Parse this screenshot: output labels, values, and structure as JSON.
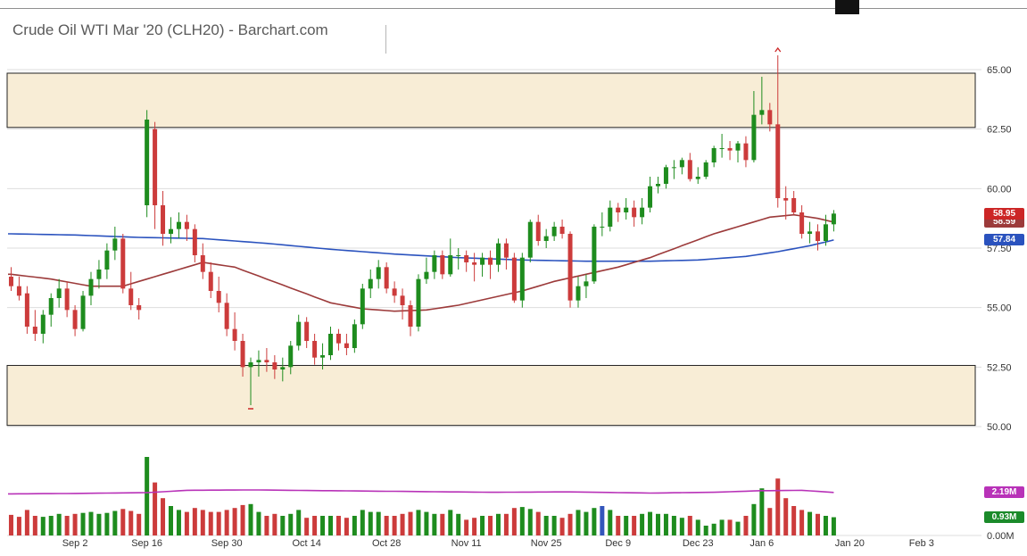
{
  "title": "Crude Oil WTI Mar '20 (CLH20) - Barchart.com",
  "colors": {
    "up": "#1e8c1e",
    "down": "#cc3b3b",
    "ma_red": "#9c3a3a",
    "ma_blue": "#2a52be",
    "volume_avg": "#b832b8",
    "band_fill": "#f8edd6",
    "band_border": "#222222",
    "grid": "#dddddd",
    "axis_text": "#333333",
    "marker": "#cc2626"
  },
  "chart_data": {
    "type": "candlestick",
    "panes": [
      "price",
      "volume"
    ],
    "title": "Crude Oil WTI Mar '20 (CLH20) - Barchart.com",
    "price_axis": {
      "ticks": [
        {
          "label": "65.00",
          "value": 65.0
        },
        {
          "label": "62.50",
          "value": 62.5
        },
        {
          "label": "60.00",
          "value": 60.0
        },
        {
          "label": "57.50",
          "value": 57.5
        },
        {
          "label": "55.00",
          "value": 55.0
        },
        {
          "label": "52.50",
          "value": 52.5
        },
        {
          "label": "50.00",
          "value": 50.0
        }
      ],
      "ylim": [
        49.3,
        67.4
      ]
    },
    "volume_axis": {
      "ticks": [
        {
          "label": "0.00M",
          "value": 0
        }
      ],
      "ylim": [
        0,
        5
      ]
    },
    "x_axis": {
      "labels": [
        {
          "label": "Sep 2",
          "i": 8
        },
        {
          "label": "Sep 16",
          "i": 17
        },
        {
          "label": "Sep 30",
          "i": 27
        },
        {
          "label": "Oct 14",
          "i": 37
        },
        {
          "label": "Oct 28",
          "i": 47
        },
        {
          "label": "Nov 11",
          "i": 57
        },
        {
          "label": "Nov 25",
          "i": 67
        },
        {
          "label": "Dec 9",
          "i": 76
        },
        {
          "label": "Dec 23",
          "i": 86
        },
        {
          "label": "Jan 6",
          "i": 94
        },
        {
          "label": "Jan 20",
          "i": 105
        },
        {
          "label": "Feb 3",
          "i": 114
        }
      ]
    },
    "bands": [
      {
        "name": "upper-resistance-band",
        "top": 64.85,
        "bottom": 62.57
      },
      {
        "name": "lower-support-band",
        "top": 52.57,
        "bottom": 50.05
      }
    ],
    "candle_format": [
      "date",
      "open",
      "high",
      "low",
      "close",
      "volume_m"
    ],
    "candles": [
      [
        "Aug 21",
        56.3,
        56.7,
        55.7,
        55.9,
        1.05
      ],
      [
        "Aug 22",
        55.9,
        56.3,
        55.3,
        55.5,
        0.95
      ],
      [
        "Aug 23",
        55.6,
        55.9,
        53.9,
        54.2,
        1.3
      ],
      [
        "Aug 26",
        54.2,
        54.9,
        53.6,
        53.9,
        1.0
      ],
      [
        "Aug 27",
        53.9,
        54.9,
        53.5,
        54.7,
        0.95
      ],
      [
        "Aug 28",
        54.7,
        55.6,
        54.2,
        55.4,
        1.0
      ],
      [
        "Aug 29",
        55.4,
        56.2,
        55.0,
        55.8,
        1.1
      ],
      [
        "Aug 30",
        55.8,
        56.1,
        54.6,
        54.9,
        1.0
      ],
      [
        "Sep 3",
        54.9,
        55.1,
        53.8,
        54.1,
        1.1
      ],
      [
        "Sep 4",
        54.1,
        55.7,
        54.0,
        55.5,
        1.15
      ],
      [
        "Sep 5",
        55.5,
        56.5,
        55.1,
        56.2,
        1.2
      ],
      [
        "Sep 6",
        56.2,
        57.0,
        55.8,
        56.6,
        1.1
      ],
      [
        "Sep 9",
        56.6,
        57.7,
        56.2,
        57.4,
        1.15
      ],
      [
        "Sep 10",
        57.4,
        58.4,
        57.0,
        57.9,
        1.25
      ],
      [
        "Sep 11",
        57.9,
        58.1,
        55.6,
        55.8,
        1.35
      ],
      [
        "Sep 12",
        55.8,
        56.5,
        54.9,
        55.1,
        1.25
      ],
      [
        "Sep 13",
        55.1,
        55.4,
        54.5,
        54.9,
        1.1
      ],
      [
        "Sep 16",
        59.3,
        63.3,
        58.8,
        62.9,
        4.0
      ],
      [
        "Sep 17",
        62.5,
        62.8,
        58.3,
        59.3,
        2.7
      ],
      [
        "Sep 18",
        59.3,
        59.9,
        57.6,
        58.1,
        1.9
      ],
      [
        "Sep 19",
        58.1,
        58.8,
        57.7,
        58.3,
        1.5
      ],
      [
        "Sep 20",
        58.3,
        59.0,
        57.9,
        58.6,
        1.3
      ],
      [
        "Sep 23",
        58.6,
        58.9,
        57.8,
        58.3,
        1.2
      ],
      [
        "Sep 24",
        58.3,
        58.5,
        56.9,
        57.2,
        1.4
      ],
      [
        "Sep 25",
        57.2,
        57.7,
        56.2,
        56.5,
        1.3
      ],
      [
        "Sep 26",
        56.5,
        56.9,
        55.4,
        55.7,
        1.2
      ],
      [
        "Sep 27",
        55.7,
        56.3,
        54.8,
        55.2,
        1.2
      ],
      [
        "Sep 30",
        55.2,
        55.6,
        53.8,
        54.1,
        1.3
      ],
      [
        "Oct 1",
        54.1,
        54.8,
        53.2,
        53.6,
        1.4
      ],
      [
        "Oct 2",
        53.6,
        53.9,
        52.1,
        52.5,
        1.55
      ],
      [
        "Oct 3",
        52.5,
        52.9,
        50.9,
        52.7,
        1.6
      ],
      [
        "Oct 4",
        52.7,
        53.2,
        52.1,
        52.8,
        1.2
      ],
      [
        "Oct 7",
        52.8,
        53.3,
        52.3,
        52.7,
        1.0
      ],
      [
        "Oct 8",
        52.7,
        53.0,
        52.0,
        52.4,
        1.1
      ],
      [
        "Oct 9",
        52.4,
        52.9,
        51.9,
        52.5,
        1.0
      ],
      [
        "Oct 10",
        52.5,
        53.6,
        52.2,
        53.4,
        1.1
      ],
      [
        "Oct 11",
        53.4,
        54.7,
        53.2,
        54.4,
        1.3
      ],
      [
        "Oct 14",
        54.4,
        54.6,
        53.3,
        53.6,
        0.9
      ],
      [
        "Oct 15",
        53.6,
        53.9,
        52.6,
        52.9,
        1.0
      ],
      [
        "Oct 16",
        52.9,
        53.5,
        52.4,
        53.0,
        1.0
      ],
      [
        "Oct 17",
        53.0,
        54.2,
        52.8,
        53.9,
        1.0
      ],
      [
        "Oct 18",
        53.9,
        54.1,
        53.2,
        53.5,
        1.0
      ],
      [
        "Oct 21",
        53.5,
        53.9,
        53.0,
        53.3,
        0.9
      ],
      [
        "Oct 22",
        53.3,
        54.5,
        53.1,
        54.3,
        1.0
      ],
      [
        "Oct 23",
        54.3,
        56.0,
        54.1,
        55.8,
        1.3
      ],
      [
        "Oct 24",
        55.8,
        56.6,
        55.4,
        56.2,
        1.2
      ],
      [
        "Oct 25",
        56.2,
        57.0,
        55.8,
        56.7,
        1.2
      ],
      [
        "Oct 28",
        56.7,
        56.9,
        55.6,
        55.8,
        1.0
      ],
      [
        "Oct 29",
        55.8,
        56.1,
        55.2,
        55.5,
        1.0
      ],
      [
        "Oct 30",
        55.5,
        55.8,
        54.5,
        55.1,
        1.1
      ],
      [
        "Oct 31",
        55.1,
        55.3,
        53.8,
        54.2,
        1.2
      ],
      [
        "Nov 1",
        54.2,
        56.4,
        54.0,
        56.2,
        1.3
      ],
      [
        "Nov 4",
        56.2,
        57.1,
        56.0,
        56.5,
        1.2
      ],
      [
        "Nov 5",
        56.5,
        57.4,
        56.2,
        57.2,
        1.1
      ],
      [
        "Nov 6",
        57.2,
        57.4,
        56.2,
        56.4,
        1.1
      ],
      [
        "Nov 7",
        56.4,
        57.9,
        56.3,
        57.2,
        1.3
      ],
      [
        "Nov 8",
        57.2,
        57.5,
        56.6,
        57.2,
        1.1
      ],
      [
        "Nov 11",
        57.2,
        57.4,
        56.5,
        56.9,
        0.8
      ],
      [
        "Nov 12",
        56.9,
        57.3,
        56.1,
        56.8,
        0.9
      ],
      [
        "Nov 13",
        56.8,
        57.3,
        56.3,
        57.1,
        1.0
      ],
      [
        "Nov 14",
        57.1,
        57.4,
        56.2,
        56.8,
        1.0
      ],
      [
        "Nov 15",
        56.8,
        57.9,
        56.5,
        57.7,
        1.1
      ],
      [
        "Nov 18",
        57.7,
        57.9,
        56.6,
        57.1,
        1.1
      ],
      [
        "Nov 19",
        57.1,
        57.3,
        55.2,
        55.3,
        1.4
      ],
      [
        "Nov 20",
        55.3,
        57.3,
        55.0,
        57.1,
        1.45
      ],
      [
        "Nov 21",
        57.1,
        58.7,
        56.9,
        58.6,
        1.35
      ],
      [
        "Nov 22",
        58.6,
        58.9,
        57.6,
        57.8,
        1.2
      ],
      [
        "Nov 25",
        57.8,
        58.3,
        57.5,
        58.0,
        1.0
      ],
      [
        "Nov 26",
        58.0,
        58.6,
        57.8,
        58.4,
        1.0
      ],
      [
        "Nov 27",
        58.4,
        58.7,
        57.9,
        58.1,
        0.9
      ],
      [
        "Nov 29",
        58.1,
        58.2,
        55.0,
        55.3,
        1.1
      ],
      [
        "Dec 2",
        55.3,
        56.3,
        55.0,
        55.9,
        1.3
      ],
      [
        "Dec 3",
        55.9,
        56.4,
        55.4,
        56.1,
        1.2
      ],
      [
        "Dec 4",
        56.1,
        58.5,
        56.0,
        58.4,
        1.4
      ],
      [
        "Dec 5",
        58.4,
        59.0,
        58.0,
        58.4,
        1.5
      ],
      [
        "Dec 6",
        58.4,
        59.5,
        58.2,
        59.2,
        1.3
      ],
      [
        "Dec 9",
        59.2,
        59.4,
        58.6,
        59.0,
        1.0
      ],
      [
        "Dec 10",
        59.0,
        59.6,
        58.7,
        59.2,
        1.0
      ],
      [
        "Dec 11",
        59.2,
        59.5,
        58.4,
        58.8,
        1.0
      ],
      [
        "Dec 12",
        58.8,
        59.6,
        58.5,
        59.2,
        1.1
      ],
      [
        "Dec 13",
        59.2,
        60.5,
        59.0,
        60.1,
        1.2
      ],
      [
        "Dec 16",
        60.1,
        60.5,
        59.8,
        60.2,
        1.1
      ],
      [
        "Dec 17",
        60.2,
        61.0,
        60.0,
        60.9,
        1.1
      ],
      [
        "Dec 18",
        60.9,
        61.2,
        60.4,
        60.9,
        1.0
      ],
      [
        "Dec 19",
        60.9,
        61.3,
        60.6,
        61.2,
        0.9
      ],
      [
        "Dec 20",
        61.2,
        61.5,
        60.3,
        60.4,
        1.0
      ],
      [
        "Dec 23",
        60.4,
        60.9,
        60.2,
        60.5,
        0.8
      ],
      [
        "Dec 24",
        60.5,
        61.2,
        60.4,
        61.1,
        0.5
      ],
      [
        "Dec 26",
        61.1,
        61.8,
        60.9,
        61.7,
        0.6
      ],
      [
        "Dec 27",
        61.7,
        62.3,
        61.3,
        61.7,
        0.8
      ],
      [
        "Dec 30",
        61.7,
        62.0,
        61.2,
        61.6,
        0.8
      ],
      [
        "Dec 31",
        61.6,
        62.0,
        61.1,
        61.9,
        0.7
      ],
      [
        "Jan 2",
        61.9,
        62.2,
        60.9,
        61.2,
        1.0
      ],
      [
        "Jan 3",
        61.2,
        64.1,
        61.1,
        63.1,
        1.6
      ],
      [
        "Jan 6",
        63.1,
        64.7,
        62.7,
        63.3,
        2.4
      ],
      [
        "Jan 7",
        63.3,
        63.6,
        62.4,
        62.7,
        1.4
      ],
      [
        "Jan 8",
        62.7,
        65.6,
        59.2,
        59.6,
        2.9
      ],
      [
        "Jan 9",
        59.6,
        60.1,
        58.7,
        59.5,
        1.9
      ],
      [
        "Jan 10",
        59.6,
        59.9,
        58.9,
        59.0,
        1.5
      ],
      [
        "Jan 13",
        59.0,
        59.3,
        57.9,
        58.1,
        1.3
      ],
      [
        "Jan 14",
        58.1,
        58.6,
        57.7,
        58.2,
        1.2
      ],
      [
        "Jan 15",
        58.2,
        58.5,
        57.4,
        57.8,
        1.1
      ],
      [
        "Jan 16",
        57.8,
        58.9,
        57.6,
        58.5,
        1.0
      ],
      [
        "Jan 17",
        58.5,
        59.1,
        58.2,
        58.95,
        0.93
      ]
    ],
    "volume_color_overrides": {
      "74": "#3355bb"
    },
    "ma_red": {
      "name": "moving-average-red",
      "last_value": 58.59,
      "points": [
        [
          0,
          56.4
        ],
        [
          5,
          56.2
        ],
        [
          10,
          55.9
        ],
        [
          14,
          55.9
        ],
        [
          18,
          56.3
        ],
        [
          24,
          56.9
        ],
        [
          28,
          56.7
        ],
        [
          32,
          56.2
        ],
        [
          36,
          55.7
        ],
        [
          40,
          55.2
        ],
        [
          44,
          54.95
        ],
        [
          48,
          54.85
        ],
        [
          52,
          54.9
        ],
        [
          56,
          55.1
        ],
        [
          60,
          55.4
        ],
        [
          64,
          55.7
        ],
        [
          68,
          56.1
        ],
        [
          72,
          56.4
        ],
        [
          76,
          56.7
        ],
        [
          80,
          57.1
        ],
        [
          84,
          57.6
        ],
        [
          88,
          58.1
        ],
        [
          92,
          58.5
        ],
        [
          95,
          58.8
        ],
        [
          98,
          58.9
        ],
        [
          101,
          58.75
        ],
        [
          103,
          58.59
        ]
      ]
    },
    "ma_blue": {
      "name": "moving-average-blue",
      "last_value": 57.84,
      "points": [
        [
          0,
          58.1
        ],
        [
          8,
          58.05
        ],
        [
          16,
          57.95
        ],
        [
          24,
          57.9
        ],
        [
          32,
          57.7
        ],
        [
          40,
          57.45
        ],
        [
          48,
          57.25
        ],
        [
          56,
          57.1
        ],
        [
          64,
          57.0
        ],
        [
          72,
          56.95
        ],
        [
          80,
          56.95
        ],
        [
          86,
          57.0
        ],
        [
          92,
          57.15
        ],
        [
          96,
          57.35
        ],
        [
          100,
          57.6
        ],
        [
          103,
          57.84
        ]
      ]
    },
    "volume_avg": {
      "name": "average-volume-line",
      "last_value": 2.19,
      "points": [
        [
          0,
          2.12
        ],
        [
          8,
          2.14
        ],
        [
          17,
          2.18
        ],
        [
          22,
          2.3
        ],
        [
          30,
          2.32
        ],
        [
          40,
          2.28
        ],
        [
          50,
          2.24
        ],
        [
          60,
          2.2
        ],
        [
          70,
          2.22
        ],
        [
          80,
          2.16
        ],
        [
          88,
          2.2
        ],
        [
          94,
          2.28
        ],
        [
          99,
          2.3
        ],
        [
          103,
          2.19
        ]
      ]
    },
    "markers": [
      {
        "name": "period-high-marker",
        "kind": "caret-up",
        "i": 96,
        "price": 65.6
      },
      {
        "name": "period-low-marker",
        "kind": "dash",
        "i": 30,
        "price": 50.9
      }
    ],
    "tags": [
      {
        "name": "last-price-tag",
        "label": "58.95",
        "color": "#cc2626",
        "pane": "price",
        "value": 58.95,
        "z": 5
      },
      {
        "name": "ma-red-tag",
        "label": "58.59",
        "color": "#9c3a3a",
        "pane": "price",
        "value": 58.59,
        "z": 3
      },
      {
        "name": "ma-blue-tag",
        "label": "57.84",
        "color": "#2a52be",
        "pane": "price",
        "value": 57.84,
        "z": 3
      },
      {
        "name": "volume-avg-tag",
        "label": "2.19M",
        "color": "#b832b8",
        "pane": "volume",
        "value": 2.19,
        "z": 3
      },
      {
        "name": "volume-last-tag",
        "label": "0.93M",
        "color": "#1b8a2a",
        "pane": "volume",
        "value": 0.93,
        "z": 3
      }
    ]
  }
}
